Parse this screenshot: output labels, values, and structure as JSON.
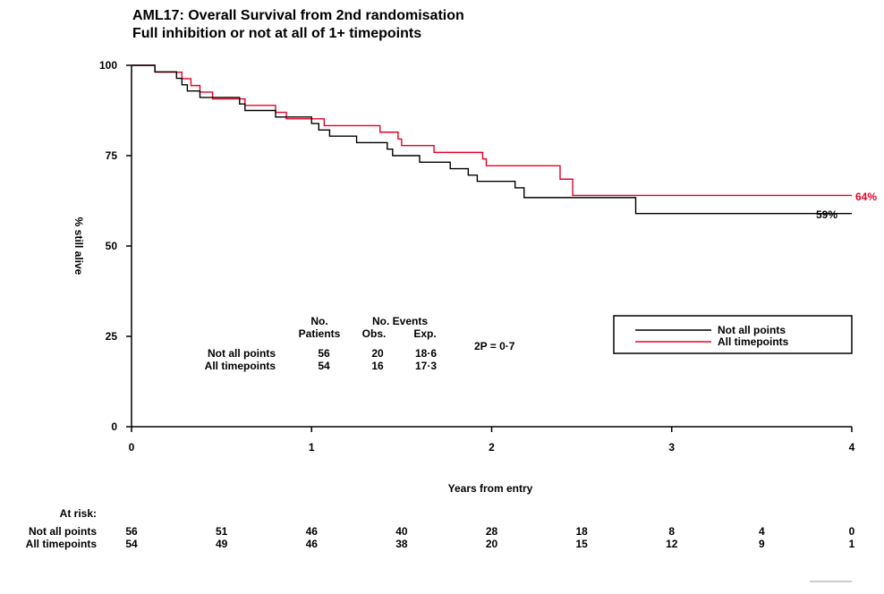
{
  "title_line1": "AML17: Overall Survival from 2nd randomisation",
  "title_line2": "Full inhibition or not at all of 1+ timepoints",
  "chart_data": {
    "type": "line",
    "xlabel": "Years from entry",
    "ylabel": "% still alive",
    "xlim": [
      0,
      4
    ],
    "ylim": [
      0,
      100
    ],
    "x_ticks": [
      0,
      1,
      2,
      3,
      4
    ],
    "y_ticks": [
      0,
      25,
      50,
      75,
      100
    ],
    "series": [
      {
        "name": "Not all points",
        "color": "#000000",
        "end_label": "59%",
        "steps": [
          [
            0,
            100
          ],
          [
            0.13,
            98.2
          ],
          [
            0.25,
            96.4
          ],
          [
            0.28,
            94.6
          ],
          [
            0.31,
            92.9
          ],
          [
            0.38,
            91.1
          ],
          [
            0.6,
            89.3
          ],
          [
            0.63,
            87.5
          ],
          [
            0.8,
            85.7
          ],
          [
            1.0,
            83.9
          ],
          [
            1.04,
            82.1
          ],
          [
            1.1,
            80.4
          ],
          [
            1.25,
            78.6
          ],
          [
            1.42,
            76.8
          ],
          [
            1.45,
            75
          ],
          [
            1.6,
            73.2
          ],
          [
            1.77,
            71.4
          ],
          [
            1.87,
            69.6
          ],
          [
            1.92,
            67.9
          ],
          [
            2.13,
            66.1
          ],
          [
            2.18,
            63.4
          ],
          [
            2.8,
            59
          ],
          [
            4.0,
            59
          ]
        ]
      },
      {
        "name": "All timepoints",
        "color": "#e8002a",
        "end_label": "64%",
        "steps": [
          [
            0,
            100
          ],
          [
            0.13,
            98.1
          ],
          [
            0.28,
            96.3
          ],
          [
            0.33,
            94.4
          ],
          [
            0.38,
            92.6
          ],
          [
            0.45,
            90.7
          ],
          [
            0.63,
            88.9
          ],
          [
            0.8,
            87
          ],
          [
            0.86,
            85.2
          ],
          [
            1.07,
            83.3
          ],
          [
            1.38,
            81.5
          ],
          [
            1.48,
            79.6
          ],
          [
            1.5,
            77.8
          ],
          [
            1.68,
            75.9
          ],
          [
            1.95,
            74.1
          ],
          [
            1.97,
            72.2
          ],
          [
            2.38,
            68.5
          ],
          [
            2.45,
            64
          ],
          [
            4.0,
            64
          ]
        ]
      }
    ],
    "legend_position": "right"
  },
  "stats_table": {
    "headers": {
      "patients_top": "No.",
      "patients_bottom": "Patients",
      "events_top": "No. Events",
      "obs": "Obs.",
      "exp": "Exp."
    },
    "rows": [
      {
        "label": "Not all points",
        "patients": "56",
        "obs": "20",
        "exp": "18·6"
      },
      {
        "label": "All timepoints",
        "patients": "54",
        "obs": "16",
        "exp": "17·3"
      }
    ],
    "pvalue": "2P = 0·7"
  },
  "at_risk": {
    "label": "At risk:",
    "rows": [
      {
        "label": "Not all points",
        "values": [
          "56",
          "51",
          "46",
          "40",
          "28",
          "18",
          "8",
          "4",
          "0"
        ]
      },
      {
        "label": "All timepoints",
        "values": [
          "54",
          "49",
          "46",
          "38",
          "20",
          "15",
          "12",
          "9",
          "1"
        ]
      }
    ]
  }
}
